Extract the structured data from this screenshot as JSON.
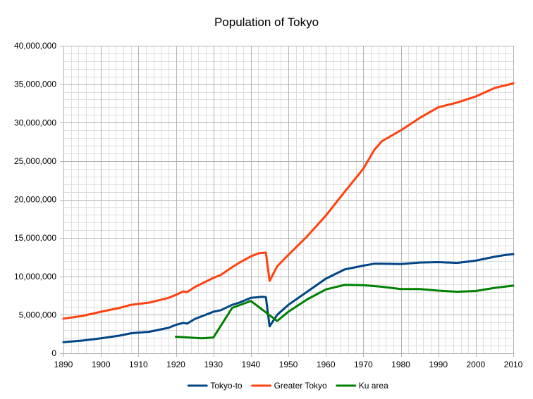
{
  "chart_data": {
    "type": "line",
    "title": "Population of Tokyo",
    "xlabel": "",
    "ylabel": "",
    "xlim": [
      1890,
      2010
    ],
    "ylim": [
      0,
      40000000
    ],
    "x_ticks": [
      1890,
      1900,
      1910,
      1920,
      1930,
      1940,
      1950,
      1960,
      1970,
      1980,
      1990,
      2000,
      2010
    ],
    "y_ticks": [
      0,
      5000000,
      10000000,
      15000000,
      20000000,
      25000000,
      30000000,
      35000000,
      40000000
    ],
    "x_tick_labels": [
      "1890",
      "1900",
      "1910",
      "1920",
      "1930",
      "1940",
      "1950",
      "1960",
      "1970",
      "1980",
      "1990",
      "2000",
      "2010"
    ],
    "y_tick_labels": [
      "0",
      "5,000,000",
      "10,000,000",
      "15,000,000",
      "20,000,000",
      "25,000,000",
      "30,000,000",
      "35,000,000",
      "40,000,000"
    ],
    "grid": true,
    "legend_position": "bottom",
    "series": [
      {
        "name": "Tokyo-to",
        "color": "#004586",
        "points": [
          [
            1890,
            1450000
          ],
          [
            1895,
            1650000
          ],
          [
            1900,
            1950000
          ],
          [
            1905,
            2300000
          ],
          [
            1908,
            2600000
          ],
          [
            1913,
            2800000
          ],
          [
            1918,
            3300000
          ],
          [
            1920,
            3700000
          ],
          [
            1922,
            3950000
          ],
          [
            1923,
            3850000
          ],
          [
            1925,
            4450000
          ],
          [
            1930,
            5400000
          ],
          [
            1932,
            5600000
          ],
          [
            1935,
            6300000
          ],
          [
            1937,
            6600000
          ],
          [
            1940,
            7200000
          ],
          [
            1943,
            7350000
          ],
          [
            1944,
            7300000
          ],
          [
            1945,
            3500000
          ],
          [
            1947,
            5000000
          ],
          [
            1950,
            6300000
          ],
          [
            1955,
            8000000
          ],
          [
            1960,
            9700000
          ],
          [
            1965,
            10900000
          ],
          [
            1970,
            11400000
          ],
          [
            1973,
            11650000
          ],
          [
            1975,
            11650000
          ],
          [
            1980,
            11600000
          ],
          [
            1985,
            11800000
          ],
          [
            1990,
            11850000
          ],
          [
            1995,
            11750000
          ],
          [
            2000,
            12050000
          ],
          [
            2005,
            12550000
          ],
          [
            2008,
            12800000
          ],
          [
            2010,
            12900000
          ]
        ]
      },
      {
        "name": "Greater Tokyo",
        "color": "#ff420e",
        "points": [
          [
            1890,
            4500000
          ],
          [
            1895,
            4850000
          ],
          [
            1900,
            5400000
          ],
          [
            1905,
            5900000
          ],
          [
            1908,
            6300000
          ],
          [
            1913,
            6600000
          ],
          [
            1918,
            7200000
          ],
          [
            1920,
            7600000
          ],
          [
            1922,
            8050000
          ],
          [
            1923,
            7950000
          ],
          [
            1925,
            8600000
          ],
          [
            1930,
            9800000
          ],
          [
            1932,
            10200000
          ],
          [
            1935,
            11200000
          ],
          [
            1937,
            11800000
          ],
          [
            1940,
            12600000
          ],
          [
            1942,
            13000000
          ],
          [
            1944,
            13100000
          ],
          [
            1945,
            9400000
          ],
          [
            1947,
            11300000
          ],
          [
            1950,
            12800000
          ],
          [
            1955,
            15200000
          ],
          [
            1960,
            17900000
          ],
          [
            1965,
            21000000
          ],
          [
            1970,
            24000000
          ],
          [
            1973,
            26500000
          ],
          [
            1975,
            27600000
          ],
          [
            1980,
            29000000
          ],
          [
            1985,
            30600000
          ],
          [
            1990,
            32000000
          ],
          [
            1995,
            32600000
          ],
          [
            2000,
            33400000
          ],
          [
            2005,
            34500000
          ],
          [
            2010,
            35100000
          ]
        ]
      },
      {
        "name": "Ku area",
        "color": "#008000",
        "points": [
          [
            1920,
            2150000
          ],
          [
            1925,
            2000000
          ],
          [
            1927,
            1950000
          ],
          [
            1930,
            2050000
          ],
          [
            1935,
            5900000
          ],
          [
            1940,
            6800000
          ],
          [
            1947,
            4200000
          ],
          [
            1950,
            5400000
          ],
          [
            1955,
            7000000
          ],
          [
            1960,
            8300000
          ],
          [
            1965,
            8900000
          ],
          [
            1970,
            8850000
          ],
          [
            1975,
            8650000
          ],
          [
            1980,
            8350000
          ],
          [
            1985,
            8350000
          ],
          [
            1990,
            8150000
          ],
          [
            1995,
            8000000
          ],
          [
            2000,
            8100000
          ],
          [
            2005,
            8500000
          ],
          [
            2010,
            8800000
          ]
        ]
      }
    ]
  }
}
